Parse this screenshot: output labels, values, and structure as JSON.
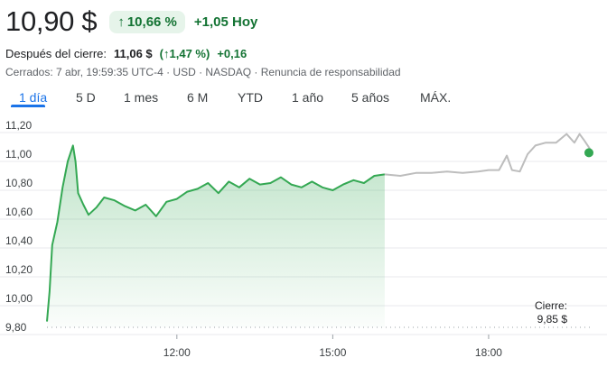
{
  "quote": {
    "price": "10,90 $",
    "change_pct": "10,66 %",
    "change_abs": "+1,05",
    "change_period": "Hoy"
  },
  "after_hours": {
    "label": "Después del cierre:",
    "price": "11,06 $",
    "pct_open": "(",
    "pct": "1,47 %",
    "pct_close": ")",
    "abs": "+0,16"
  },
  "meta": "Cerrados: 7 abr, 19:59:35 UTC-4 · USD · NASDAQ · Renuncia de responsabilidad",
  "tabs": [
    "1 día",
    "5 D",
    "1 mes",
    "6 M",
    "YTD",
    "1 año",
    "5 años",
    "MÁX."
  ],
  "active_tab": 0,
  "colors": {
    "positive": "#137333",
    "line_market": "#34a853",
    "line_extended": "#bdbdbd",
    "accent": "#1a73e8"
  },
  "chart_data": {
    "type": "line",
    "y_ticks": [
      "11,20",
      "11,00",
      "10,80",
      "10,60",
      "10,40",
      "10,20",
      "10,00",
      "9,80"
    ],
    "y_tick_values": [
      11.2,
      11.0,
      10.8,
      10.6,
      10.4,
      10.2,
      10.0,
      9.8
    ],
    "ylim": [
      9.8,
      11.2
    ],
    "x_ticks": [
      "12:00",
      "15:00",
      "18:00"
    ],
    "x_tick_hours": [
      12,
      15,
      18
    ],
    "xlim_hours": [
      9.5,
      20.0
    ],
    "previous_close": {
      "label": "Cierre:",
      "value_label": "9,85 $",
      "value": 9.85
    },
    "series": [
      {
        "session": "market",
        "x_hours": [
          9.5,
          9.55,
          9.6,
          9.7,
          9.8,
          9.9,
          10.0,
          10.05,
          10.1,
          10.2,
          10.3,
          10.45,
          10.6,
          10.8,
          11.0,
          11.2,
          11.4,
          11.6,
          11.8,
          12.0,
          12.2,
          12.4,
          12.6,
          12.8,
          13.0,
          13.2,
          13.4,
          13.6,
          13.8,
          14.0,
          14.2,
          14.4,
          14.6,
          14.8,
          15.0,
          15.2,
          15.4,
          15.6,
          15.8,
          16.0
        ],
        "values": [
          9.89,
          10.1,
          10.42,
          10.58,
          10.82,
          11.0,
          11.11,
          11.0,
          10.78,
          10.7,
          10.63,
          10.68,
          10.75,
          10.73,
          10.69,
          10.66,
          10.7,
          10.62,
          10.72,
          10.74,
          10.79,
          10.81,
          10.85,
          10.78,
          10.86,
          10.82,
          10.88,
          10.84,
          10.85,
          10.89,
          10.84,
          10.82,
          10.86,
          10.82,
          10.8,
          10.84,
          10.87,
          10.85,
          10.9,
          10.91
        ]
      },
      {
        "session": "extended",
        "x_hours": [
          16.0,
          16.3,
          16.6,
          16.9,
          17.2,
          17.5,
          17.8,
          18.0,
          18.2,
          18.35,
          18.45,
          18.6,
          18.75,
          18.9,
          19.1,
          19.3,
          19.5,
          19.65,
          19.75,
          19.85,
          20.0
        ],
        "values": [
          10.91,
          10.9,
          10.92,
          10.92,
          10.93,
          10.92,
          10.93,
          10.94,
          10.94,
          11.04,
          10.94,
          10.93,
          11.05,
          11.11,
          11.13,
          11.13,
          11.19,
          11.13,
          11.19,
          11.14,
          11.06
        ]
      }
    ],
    "last_value": 11.06
  }
}
